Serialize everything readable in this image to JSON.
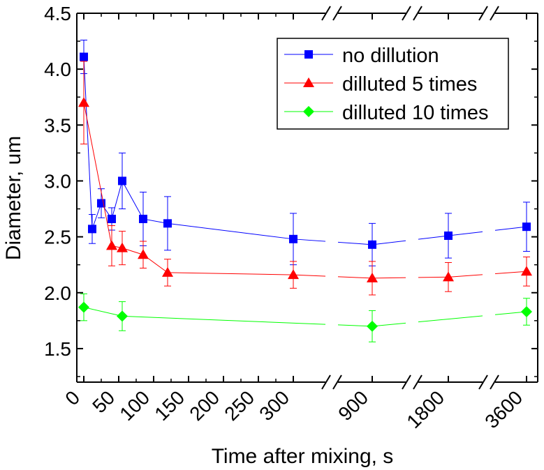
{
  "chart_data": {
    "type": "line",
    "title": "",
    "xlabel": "Time after mixing, s",
    "ylabel": "Diameter, um",
    "ylim": [
      1.2,
      4.5
    ],
    "y_ticks": [
      "1.5",
      "2.0",
      "2.5",
      "3.0",
      "3.5",
      "4.0",
      "4.5"
    ],
    "x_axis_breaks": [
      "after 300",
      "after 900",
      "after 1800"
    ],
    "x_tick_labels": [
      {
        "label": "0",
        "t": 0
      },
      {
        "label": "50",
        "t": 50
      },
      {
        "label": "100",
        "t": 100
      },
      {
        "label": "150",
        "t": 150
      },
      {
        "label": "200",
        "t": 200
      },
      {
        "label": "250",
        "t": 250
      },
      {
        "label": "300",
        "t": 300
      },
      {
        "label": "900",
        "t": 900
      },
      {
        "label": "1800",
        "t": 1800
      },
      {
        "label": "3600",
        "t": 3600
      }
    ],
    "legend_position": "top-right",
    "series": [
      {
        "name": "no dillution",
        "color": "#0000ff",
        "marker": "square",
        "points": [
          {
            "t": 0,
            "y": 4.11,
            "err": 0.15
          },
          {
            "t": 12,
            "y": 2.57,
            "err": 0.13
          },
          {
            "t": 25,
            "y": 2.8,
            "err": 0.13
          },
          {
            "t": 40,
            "y": 2.66,
            "err": 0.1
          },
          {
            "t": 55,
            "y": 3.0,
            "err": 0.25
          },
          {
            "t": 85,
            "y": 2.66,
            "err": 0.24
          },
          {
            "t": 120,
            "y": 2.62,
            "err": 0.24
          },
          {
            "t": 300,
            "y": 2.48,
            "err": 0.23
          },
          {
            "t": 900,
            "y": 2.43,
            "err": 0.19
          },
          {
            "t": 1800,
            "y": 2.51,
            "err": 0.2
          },
          {
            "t": 3600,
            "y": 2.59,
            "err": 0.22
          }
        ]
      },
      {
        "name": "dilluted 5 times",
        "color": "#ff0000",
        "marker": "triangle",
        "points": [
          {
            "t": 0,
            "y": 3.7,
            "err": 0.37
          },
          {
            "t": 40,
            "y": 2.42,
            "err": 0.18
          },
          {
            "t": 55,
            "y": 2.4,
            "err": 0.15
          },
          {
            "t": 85,
            "y": 2.34,
            "err": 0.12
          },
          {
            "t": 120,
            "y": 2.18,
            "err": 0.12
          },
          {
            "t": 300,
            "y": 2.16,
            "err": 0.12
          },
          {
            "t": 900,
            "y": 2.13,
            "err": 0.15
          },
          {
            "t": 1800,
            "y": 2.14,
            "err": 0.13
          },
          {
            "t": 3600,
            "y": 2.19,
            "err": 0.13
          }
        ]
      },
      {
        "name": "dilluted 10 times",
        "color": "#00ff00",
        "marker": "diamond",
        "points": [
          {
            "t": 0,
            "y": 1.87,
            "err": 0.12
          },
          {
            "t": 55,
            "y": 1.79,
            "err": 0.13
          },
          {
            "t": 900,
            "y": 1.7,
            "err": 0.14
          },
          {
            "t": 3600,
            "y": 1.83,
            "err": 0.12
          }
        ]
      }
    ]
  }
}
